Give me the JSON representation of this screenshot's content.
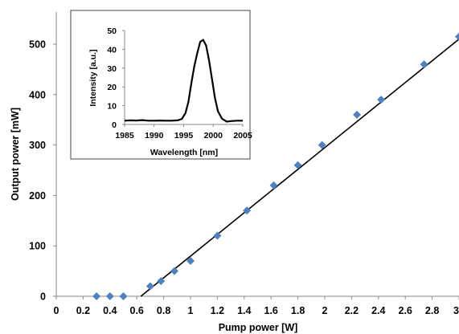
{
  "chart_data": [
    {
      "type": "scatter",
      "title": "",
      "xlabel": "Pump power [W]",
      "ylabel": "Output power [mW]",
      "xlim": [
        0,
        3
      ],
      "ylim": [
        0,
        500
      ],
      "x_ticks": [
        "0",
        "0.2",
        "0.4",
        "0.6",
        "0.8",
        "1",
        "1.2",
        "1.4",
        "1.6",
        "1.8",
        "2",
        "2.2",
        "2.4",
        "2.6",
        "2.8",
        "3"
      ],
      "y_ticks": [
        "0",
        "100",
        "200",
        "300",
        "400",
        "500"
      ],
      "grid": false,
      "legend": "none",
      "marker": "diamond",
      "marker_color": "#4f81bd",
      "series": [
        {
          "x": [
            0.3,
            0.4,
            0.5,
            0.7,
            0.78,
            0.88,
            1.0,
            1.2,
            1.42,
            1.62,
            1.8,
            1.98,
            2.24,
            2.42,
            2.74,
            3.0
          ],
          "y": [
            0,
            0,
            0,
            20,
            30,
            50,
            70,
            120,
            170,
            220,
            260,
            300,
            360,
            390,
            460,
            515
          ]
        }
      ],
      "fit_line": {
        "color": "#000000",
        "x": [
          0.63,
          3.0
        ],
        "y": [
          0,
          510
        ]
      }
    },
    {
      "type": "line",
      "title": "",
      "xlabel": "Wavelength [nm]",
      "ylabel": "Intensity [a.u.]",
      "xlim": [
        1985,
        2005
      ],
      "ylim": [
        0,
        50
      ],
      "x_ticks": [
        "1985",
        "1990",
        "1995",
        "2000",
        "2005"
      ],
      "y_ticks": [
        "0",
        "10",
        "20",
        "30",
        "40",
        "50"
      ],
      "grid": false,
      "legend": "none",
      "line_color": "#000000",
      "series": [
        {
          "x": [
            1985,
            1986,
            1987,
            1988,
            1989,
            1990,
            1991,
            1992,
            1993,
            1994,
            1994.7,
            1995.3,
            1995.8,
            1996.3,
            1996.8,
            1997.3,
            1997.8,
            1998.3,
            1998.8,
            1999.3,
            1999.8,
            2000.3,
            2000.8,
            2001.5,
            2002.3,
            2003,
            2004,
            2005
          ],
          "y": [
            2,
            2.2,
            2.1,
            2.3,
            2,
            2,
            2.1,
            2,
            2,
            2.2,
            3,
            6,
            12,
            22,
            31,
            38,
            44,
            45,
            42,
            34,
            24,
            14,
            7,
            3,
            1.5,
            1.8,
            2,
            2
          ]
        }
      ]
    }
  ]
}
